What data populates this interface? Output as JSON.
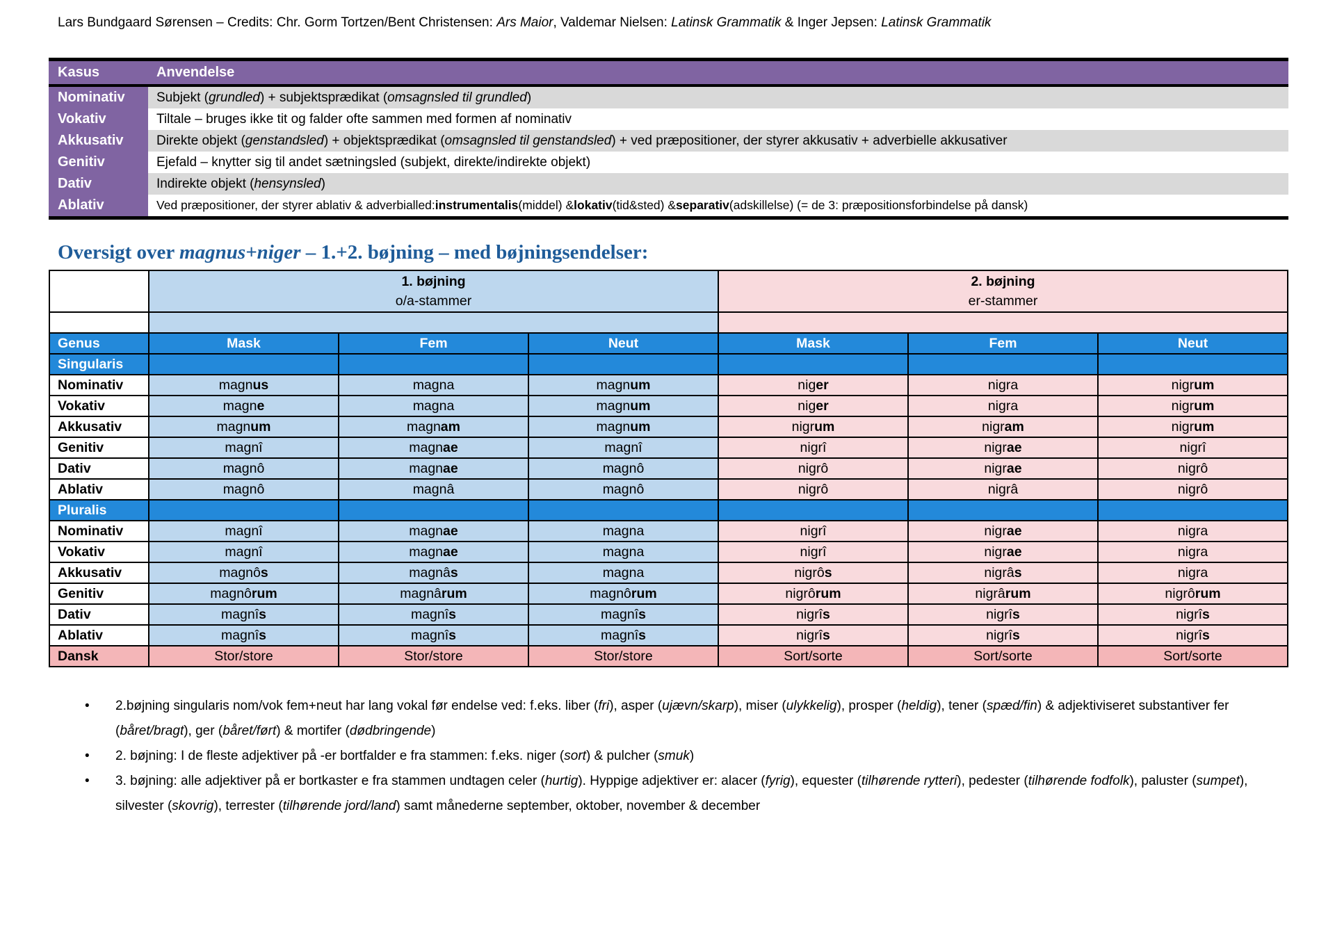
{
  "credits": [
    [
      "Lars Bundgaard Sørensen – Credits: Chr. Gorm Tortzen/Bent Christensen: ",
      ""
    ],
    [
      "Ars Maior",
      "i"
    ],
    [
      ", Valdemar Nielsen: ",
      ""
    ],
    [
      "Latinsk Grammatik",
      "i"
    ],
    [
      " & Inger Jepsen: ",
      ""
    ],
    [
      "Latinsk Grammatik",
      "i"
    ]
  ],
  "cases_table": {
    "headers": [
      "Kasus",
      "Anvendelse"
    ],
    "rows": [
      {
        "kasus": "Nominativ",
        "usage": [
          [
            "Subjekt (",
            ""
          ],
          [
            "grundled",
            "i"
          ],
          [
            ") + subjektsprædikat (",
            ""
          ],
          [
            "omsagnsled til grundled",
            "i"
          ],
          [
            ")",
            ""
          ]
        ]
      },
      {
        "kasus": "Vokativ",
        "usage": [
          [
            "Tiltale – bruges ikke tit og falder ofte sammen med formen af nominativ",
            ""
          ]
        ]
      },
      {
        "kasus": "Akkusativ",
        "usage": [
          [
            "Direkte objekt (",
            ""
          ],
          [
            "genstandsled",
            "i"
          ],
          [
            ") + objektsprædikat (",
            ""
          ],
          [
            "omsagnsled til genstandsled",
            "i"
          ],
          [
            ") + ved præpositioner, der styrer akkusativ + adverbielle akkusativer",
            ""
          ]
        ]
      },
      {
        "kasus": "Genitiv",
        "usage": [
          [
            "Ejefald – knytter sig til andet sætningsled (subjekt, direkte/indirekte objekt)",
            ""
          ]
        ]
      },
      {
        "kasus": "Dativ",
        "usage": [
          [
            "Indirekte objekt (",
            ""
          ],
          [
            "hensynsled",
            "i"
          ],
          [
            ")",
            ""
          ]
        ]
      },
      {
        "kasus": "Ablativ",
        "usage": [
          [
            "Ved præpositioner, der styrer ablativ & adverbialled: ",
            ""
          ],
          [
            "instrumentalis",
            "b"
          ],
          [
            " (middel) & ",
            ""
          ],
          [
            "lokativ",
            "b"
          ],
          [
            " (tid&sted) & ",
            ""
          ],
          [
            "separativ",
            "b"
          ],
          [
            " (adskillelse) (= de 3: præpositionsforbindelse på dansk)",
            ""
          ]
        ]
      }
    ]
  },
  "overview": {
    "title": [
      [
        "Oversigt over ",
        ""
      ],
      [
        "magnus+niger",
        "i"
      ],
      [
        " – 1.+2. bøjning – med bøjningsendelser:",
        ""
      ]
    ],
    "groups": [
      {
        "name": "1. bøjning",
        "sub": "o/a-stammer"
      },
      {
        "name": "2. bøjning",
        "sub": "er-stammer"
      }
    ],
    "genus_label": "Genus",
    "genders": [
      "Mask",
      "Fem",
      "Neut",
      "Mask",
      "Fem",
      "Neut"
    ],
    "sections": [
      {
        "label": "Singularis",
        "rows": [
          {
            "case": "Nominativ",
            "forms": [
              [
                "magn",
                "us"
              ],
              [
                "magna",
                ""
              ],
              [
                "magn",
                "um"
              ],
              [
                "nig",
                "er"
              ],
              [
                "nigra",
                ""
              ],
              [
                "nigr",
                "um"
              ]
            ]
          },
          {
            "case": "Vokativ",
            "forms": [
              [
                "magn",
                "e"
              ],
              [
                "magna",
                ""
              ],
              [
                "magn",
                "um"
              ],
              [
                "nig",
                "er"
              ],
              [
                "nigra",
                ""
              ],
              [
                "nigr",
                "um"
              ]
            ]
          },
          {
            "case": "Akkusativ",
            "forms": [
              [
                "magn",
                "um"
              ],
              [
                "magn",
                "am"
              ],
              [
                "magn",
                "um"
              ],
              [
                "nigr",
                "um"
              ],
              [
                "nigr",
                "am"
              ],
              [
                "nigr",
                "um"
              ]
            ]
          },
          {
            "case": "Genitiv",
            "forms": [
              [
                "magnî",
                ""
              ],
              [
                "magn",
                "ae"
              ],
              [
                "magnî",
                ""
              ],
              [
                "nigrî",
                ""
              ],
              [
                "nigr",
                "ae"
              ],
              [
                "nigrî",
                ""
              ]
            ]
          },
          {
            "case": "Dativ",
            "forms": [
              [
                "magnô",
                ""
              ],
              [
                "magn",
                "ae"
              ],
              [
                "magnô",
                ""
              ],
              [
                "nigrô",
                ""
              ],
              [
                "nigr",
                "ae"
              ],
              [
                "nigrô",
                ""
              ]
            ]
          },
          {
            "case": "Ablativ",
            "forms": [
              [
                "magnô",
                ""
              ],
              [
                "magnâ",
                ""
              ],
              [
                "magnô",
                ""
              ],
              [
                "nigrô",
                ""
              ],
              [
                "nigrâ",
                ""
              ],
              [
                "nigrô",
                ""
              ]
            ]
          }
        ]
      },
      {
        "label": "Pluralis",
        "rows": [
          {
            "case": "Nominativ",
            "forms": [
              [
                "magnî",
                ""
              ],
              [
                "magn",
                "ae"
              ],
              [
                "magna",
                ""
              ],
              [
                "nigrî",
                ""
              ],
              [
                "nigr",
                "ae"
              ],
              [
                "nigra",
                ""
              ]
            ]
          },
          {
            "case": "Vokativ",
            "forms": [
              [
                "magnî",
                ""
              ],
              [
                "magn",
                "ae"
              ],
              [
                "magna",
                ""
              ],
              [
                "nigrî",
                ""
              ],
              [
                "nigr",
                "ae"
              ],
              [
                "nigra",
                ""
              ]
            ]
          },
          {
            "case": "Akkusativ",
            "forms": [
              [
                "magnô",
                "s"
              ],
              [
                "magnâ",
                "s"
              ],
              [
                "magna",
                ""
              ],
              [
                "nigrô",
                "s"
              ],
              [
                "nigrâ",
                "s"
              ],
              [
                "nigra",
                ""
              ]
            ]
          },
          {
            "case": "Genitiv",
            "forms": [
              [
                "magnô",
                "rum"
              ],
              [
                "magnâ",
                "rum"
              ],
              [
                "magnô",
                "rum"
              ],
              [
                "nigrô",
                "rum"
              ],
              [
                "nigrâ",
                "rum"
              ],
              [
                "nigrô",
                "rum"
              ]
            ]
          },
          {
            "case": "Dativ",
            "forms": [
              [
                "magnî",
                "s"
              ],
              [
                "magnî",
                "s"
              ],
              [
                "magnî",
                "s"
              ],
              [
                "nigrî",
                "s"
              ],
              [
                "nigrî",
                "s"
              ],
              [
                "nigrî",
                "s"
              ]
            ]
          },
          {
            "case": "Ablativ",
            "forms": [
              [
                "magnî",
                "s"
              ],
              [
                "magnî",
                "s"
              ],
              [
                "magnî",
                "s"
              ],
              [
                "nigrî",
                "s"
              ],
              [
                "nigrî",
                "s"
              ],
              [
                "nigrî",
                "s"
              ]
            ]
          }
        ]
      }
    ],
    "dansk": {
      "label": "Dansk",
      "values": [
        "Stor/store",
        "Stor/store",
        "Stor/store",
        "Sort/sorte",
        "Sort/sorte",
        "Sort/sorte"
      ]
    }
  },
  "notes": {
    "bullet": "•",
    "items": [
      [
        [
          "2.bøjning singularis nom/vok fem+neut har lang vokal før endelse ved: f.eks. liber (",
          ""
        ],
        [
          "fri",
          "i"
        ],
        [
          "), asper (",
          ""
        ],
        [
          "ujævn/skarp",
          "i"
        ],
        [
          "), miser (",
          ""
        ],
        [
          "ulykkelig",
          "i"
        ],
        [
          "), prosper (",
          ""
        ],
        [
          "heldig",
          "i"
        ],
        [
          "), tener (",
          ""
        ],
        [
          "spæd/fin",
          "i"
        ],
        [
          ") & adjektiviseret substantiver fer (",
          ""
        ],
        [
          "båret/bragt",
          "i"
        ],
        [
          "), ger (",
          ""
        ],
        [
          "båret/ført",
          "i"
        ],
        [
          ") & mortifer (",
          ""
        ],
        [
          "dødbringende",
          "i"
        ],
        [
          ")",
          ""
        ]
      ],
      [
        [
          "2. bøjning: I de fleste adjektiver på -er bortfalder e fra stammen: f.eks. niger (",
          ""
        ],
        [
          "sort",
          "i"
        ],
        [
          ") & pulcher (",
          ""
        ],
        [
          "smuk",
          "i"
        ],
        [
          ")",
          ""
        ]
      ],
      [
        [
          "3. bøjning: alle adjektiver på er bortkaster e fra stammen undtagen celer (",
          ""
        ],
        [
          "hurtig",
          "i"
        ],
        [
          "). Hyppige adjektiver er: alacer (",
          ""
        ],
        [
          "fyrig",
          "i"
        ],
        [
          "), equester (",
          ""
        ],
        [
          "tilhørende rytteri",
          "i"
        ],
        [
          "), pedester (",
          ""
        ],
        [
          "tilhørende fodfolk",
          "i"
        ],
        [
          "), paluster (",
          ""
        ],
        [
          "sumpet",
          "i"
        ],
        [
          "), silvester (",
          ""
        ],
        [
          "skovrig",
          "i"
        ],
        [
          "), terrester (",
          ""
        ],
        [
          "tilhørende jord/land",
          "i"
        ],
        [
          ") samt månederne september, oktober, november & december",
          ""
        ]
      ]
    ]
  },
  "colors": {
    "purple": "#8064a2",
    "gray_row": "#d9d9d9",
    "blue_header": "#2389da",
    "light_blue": "#bdd7ee",
    "light_pink": "#f9dadd",
    "dansk_pink": "#f4b6b8",
    "heading": "#1f5c99"
  }
}
